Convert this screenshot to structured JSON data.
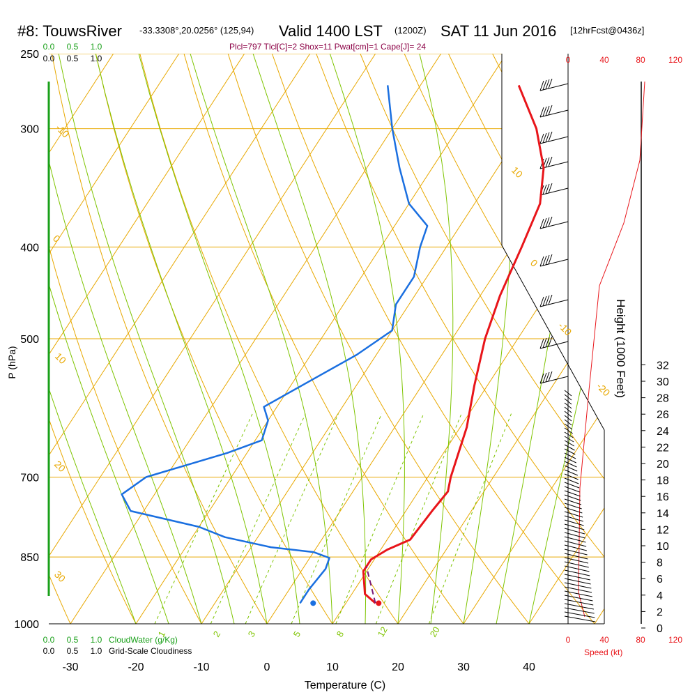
{
  "header": {
    "station": "#8: TouwsRiver",
    "coords": "-33.3308°,20.0256° (125,94)",
    "valid": "Valid 1400 LST",
    "utc": "(1200Z)",
    "date": "SAT 11 Jun 2016",
    "forecast": "[12hrFcst@0436z]",
    "indices": "Plcl=797 Tlcl[C]=2 Shox=11 Pwat[cm]=1 Cape[J]= 24"
  },
  "colors": {
    "temperature": "#e8151a",
    "dewpoint": "#1a6fe0",
    "parcel": "#7a1a7a",
    "isotherm": "#e8a800",
    "mixing": "#7ec400",
    "cloud": "#1aa01a",
    "speed": "#e8151a",
    "indices": "#8b0045"
  },
  "chart_data": {
    "type": "line",
    "xlabel": "Temperature (C)",
    "ylabel": "P (hPa)",
    "x_ticks": [
      "-30",
      "-20",
      "-10",
      "0",
      "10",
      "20",
      "30",
      "40"
    ],
    "p_ticks": [
      "250",
      "300",
      "400",
      "500",
      "700",
      "850",
      "1000"
    ],
    "height_label": "Height (1000 Feet)",
    "height_ticks": [
      "0",
      "2",
      "4",
      "6",
      "8",
      "10",
      "12",
      "14",
      "16",
      "18",
      "20",
      "22",
      "24",
      "26",
      "28",
      "30",
      "32"
    ],
    "isotherm_labels": [
      "-10",
      "0",
      "10",
      "20",
      "30",
      "10",
      "0",
      "-10",
      "-20",
      "-30"
    ],
    "mixing_labels": [
      "1",
      "2",
      "3",
      "5",
      "8",
      "12",
      "20"
    ],
    "cloud_scale": [
      "0.0",
      "0.5",
      "1.0"
    ],
    "cloud_water_label": "CloudWater (g/Kg)",
    "cloudiness_label": "Grid-Scale Cloudiness",
    "speed_label": "Speed (kt)",
    "speed_ticks": [
      "0",
      "40",
      "80",
      "120"
    ],
    "series": [
      {
        "name": "temperature",
        "points": [
          [
            14.5,
            951
          ],
          [
            12,
            930
          ],
          [
            9.5,
            880
          ],
          [
            9.5,
            855
          ],
          [
            11,
            835
          ],
          [
            13.5,
            815
          ],
          [
            14,
            760
          ],
          [
            14.5,
            725
          ],
          [
            13.5,
            700
          ],
          [
            11,
            620
          ],
          [
            8,
            560
          ],
          [
            5,
            500
          ],
          [
            3,
            450
          ],
          [
            1.5,
            400
          ],
          [
            0,
            360
          ],
          [
            -3,
            330
          ],
          [
            -8,
            300
          ],
          [
            -15,
            270
          ]
        ]
      },
      {
        "name": "dewpoint",
        "points": [
          [
            3,
            951
          ],
          [
            3,
            920
          ],
          [
            3.5,
            875
          ],
          [
            3,
            852
          ],
          [
            0,
            840
          ],
          [
            -7,
            830
          ],
          [
            -15,
            810
          ],
          [
            -20,
            790
          ],
          [
            -32,
            760
          ],
          [
            -35,
            730
          ],
          [
            -33,
            700
          ],
          [
            -23,
            660
          ],
          [
            -19,
            640
          ],
          [
            -20,
            610
          ],
          [
            -22,
            590
          ],
          [
            -17,
            550
          ],
          [
            -13,
            520
          ],
          [
            -10,
            490
          ],
          [
            -12,
            460
          ],
          [
            -12,
            430
          ],
          [
            -14,
            400
          ],
          [
            -15,
            380
          ],
          [
            -20,
            360
          ],
          [
            -25,
            330
          ],
          [
            -30,
            300
          ],
          [
            -35,
            270
          ]
        ]
      },
      {
        "name": "parcel",
        "points": [
          [
            14.5,
            951
          ],
          [
            9.5,
            870
          ]
        ]
      }
    ],
    "surface_temperature": 15,
    "surface_dewpoint": 5
  }
}
